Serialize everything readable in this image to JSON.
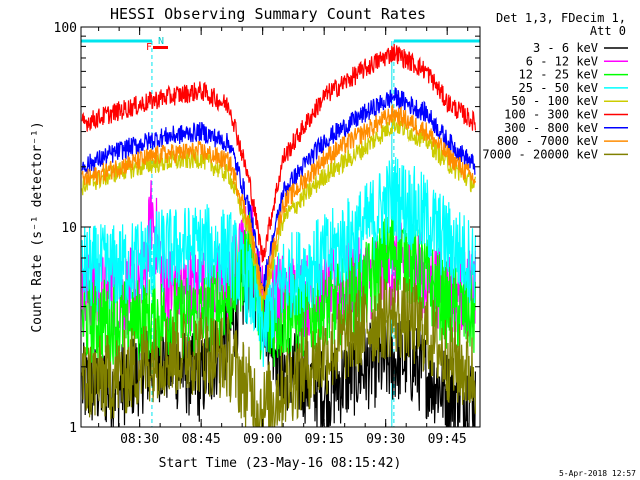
{
  "chart_data": {
    "type": "line",
    "title": "HESSI Observing Summary Count Rates",
    "xlabel": "Start Time (23-May-16 08:15:42)",
    "ylabel": "Count Rate (s⁻¹ detector⁻¹)",
    "y_scale": "log",
    "ylim": [
      1,
      100
    ],
    "xlim": [
      "08:15:42",
      "09:53:00"
    ],
    "x_ticks": [
      "08:30",
      "08:45",
      "09:00",
      "09:15",
      "09:30",
      "09:45"
    ],
    "y_ticks": [
      "1",
      "10",
      "100"
    ],
    "legend_header": [
      "Det 1,3, FDecim 1,",
      "Att 0"
    ],
    "legend_position": "top-right",
    "annotations": {
      "flag_f": "F",
      "flag_n": "N"
    },
    "footer_date": "5-Apr-2018 12:57",
    "night_intervals": [
      [
        "08:15:42",
        "08:33:00"
      ],
      [
        "09:32:00",
        "09:53:00"
      ]
    ],
    "series": [
      {
        "name": "3 - 6 keV",
        "color": "#000000",
        "x": [
          "08:16",
          "08:25",
          "08:35",
          "08:45",
          "08:52",
          "08:57",
          "09:00",
          "09:05",
          "09:15",
          "09:25",
          "09:35",
          "09:45",
          "09:52"
        ],
        "y": [
          1.6,
          1.6,
          2.2,
          1.7,
          3.0,
          6.0,
          4.0,
          2.0,
          1.5,
          2.0,
          2.2,
          1.5,
          1.4
        ]
      },
      {
        "name": "6 - 12 keV",
        "color": "#ff00ff",
        "x": [
          "08:16",
          "08:25",
          "08:31",
          "08:33",
          "08:36",
          "08:45",
          "08:52",
          "08:57",
          "09:00",
          "09:05",
          "09:15",
          "09:25",
          "09:35",
          "09:45",
          "09:52"
        ],
        "y": [
          4.6,
          4.6,
          5.0,
          12.0,
          5.0,
          4.8,
          5.2,
          9.0,
          4.0,
          4.6,
          4.6,
          5.5,
          6.5,
          4.8,
          4.6
        ]
      },
      {
        "name": "12 - 25 keV",
        "color": "#00ff00",
        "x": [
          "08:16",
          "08:25",
          "08:35",
          "08:45",
          "08:52",
          "08:57",
          "09:00",
          "09:05",
          "09:15",
          "09:25",
          "09:32",
          "09:40",
          "09:45",
          "09:52"
        ],
        "y": [
          3.4,
          3.4,
          3.5,
          3.6,
          4.5,
          8.0,
          3.0,
          3.5,
          3.8,
          5.0,
          8.0,
          5.5,
          4.0,
          3.6
        ]
      },
      {
        "name": "25 - 50 keV",
        "color": "#00ffff",
        "x": [
          "08:16",
          "08:25",
          "08:35",
          "08:45",
          "08:52",
          "08:57",
          "09:00",
          "09:05",
          "09:15",
          "09:25",
          "09:32",
          "09:40",
          "09:45",
          "09:52"
        ],
        "y": [
          6.2,
          6.3,
          7.5,
          8.0,
          7.5,
          5.0,
          3.0,
          5.5,
          7.0,
          10.0,
          14.5,
          11.0,
          8.5,
          6.5
        ]
      },
      {
        "name": "50 - 100 keV",
        "color": "#cccc00",
        "x": [
          "08:16",
          "08:25",
          "08:35",
          "08:45",
          "08:52",
          "08:57",
          "09:00",
          "09:05",
          "09:15",
          "09:25",
          "09:32",
          "09:40",
          "09:45",
          "09:52"
        ],
        "y": [
          16.0,
          19.0,
          21.0,
          22.0,
          18.0,
          9.0,
          4.0,
          11.0,
          18.0,
          25.0,
          33.0,
          27.0,
          21.0,
          16.0
        ]
      },
      {
        "name": "100 - 300 keV",
        "color": "#ff0000",
        "x": [
          "08:16",
          "08:25",
          "08:35",
          "08:45",
          "08:52",
          "08:57",
          "09:00",
          "09:05",
          "09:15",
          "09:25",
          "09:32",
          "09:40",
          "09:45",
          "09:52"
        ],
        "y": [
          33.0,
          38.0,
          44.0,
          48.0,
          40.0,
          16.0,
          7.0,
          22.0,
          45.0,
          62.0,
          75.0,
          60.0,
          42.0,
          33.0
        ]
      },
      {
        "name": "300 - 800 keV",
        "color": "#0000ff",
        "x": [
          "08:16",
          "08:25",
          "08:35",
          "08:45",
          "08:52",
          "08:57",
          "09:00",
          "09:05",
          "09:15",
          "09:25",
          "09:32",
          "09:40",
          "09:45",
          "09:52"
        ],
        "y": [
          20.0,
          24.0,
          28.0,
          30.0,
          26.0,
          12.0,
          5.0,
          15.0,
          27.0,
          37.0,
          45.0,
          37.0,
          27.0,
          20.0
        ]
      },
      {
        "name": "800 - 7000 keV",
        "color": "#ff8c00",
        "x": [
          "08:16",
          "08:25",
          "08:35",
          "08:45",
          "08:52",
          "08:57",
          "09:00",
          "09:05",
          "09:15",
          "09:25",
          "09:32",
          "09:40",
          "09:45",
          "09:52"
        ],
        "y": [
          17.0,
          20.0,
          23.0,
          24.0,
          21.0,
          10.0,
          4.5,
          13.0,
          22.0,
          30.0,
          37.0,
          30.0,
          23.0,
          17.0
        ]
      },
      {
        "name": "7000 - 20000 keV",
        "color": "#808000",
        "x": [
          "08:16",
          "08:25",
          "08:35",
          "08:45",
          "08:52",
          "08:57",
          "09:00",
          "09:05",
          "09:15",
          "09:25",
          "09:32",
          "09:40",
          "09:45",
          "09:52"
        ],
        "y": [
          1.7,
          1.8,
          2.3,
          2.4,
          2.2,
          1.5,
          1.2,
          1.6,
          2.3,
          3.2,
          3.7,
          3.0,
          2.2,
          1.8
        ]
      }
    ]
  }
}
